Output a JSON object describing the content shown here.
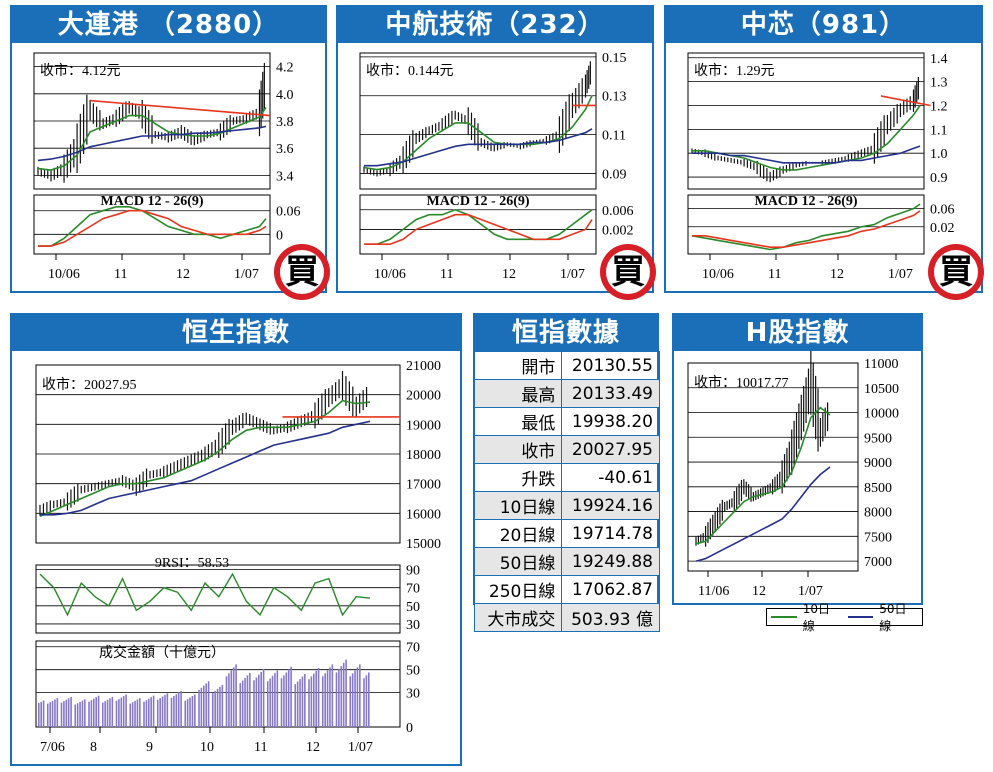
{
  "colors": {
    "blue_header": "#1a6fb8",
    "ma_short": "#2a8a2a",
    "ma_long": "#23318c",
    "trend": "#e8341c",
    "stamp": "#d61f26",
    "volume": "#8878c8"
  },
  "stamp_text": "買",
  "charts": [
    {
      "id": "dalian",
      "title": "大連港 （2880）",
      "close_label": "收市：4.12元",
      "main_ticks": [
        "4.2",
        "4.0",
        "3.8",
        "3.6",
        "3.4"
      ],
      "main_range": [
        3.3,
        4.3
      ],
      "macd_label": "MACD 12 - 26(9)",
      "macd_ticks": [
        "0.06",
        "0"
      ],
      "macd_range": [
        -0.05,
        0.1
      ],
      "date_labels": [
        "10/06",
        "11",
        "12",
        "1/07"
      ],
      "chart_data": {
        "type": "line",
        "x": [
          0,
          4,
          8,
          12,
          16,
          20,
          24,
          28,
          32,
          36,
          40,
          44,
          48,
          52,
          56,
          60,
          64,
          68,
          70
        ],
        "series": [
          {
            "values": [
              3.43,
              3.4,
              3.45,
              3.6,
              3.88,
              3.78,
              3.82,
              3.9,
              3.85,
              3.7,
              3.68,
              3.72,
              3.66,
              3.7,
              3.72,
              3.8,
              3.82,
              3.86,
              4.12
            ]
          },
          {
            "values": [
              3.45,
              3.44,
              3.47,
              3.55,
              3.72,
              3.76,
              3.8,
              3.84,
              3.84,
              3.78,
              3.72,
              3.7,
              3.69,
              3.69,
              3.71,
              3.75,
              3.79,
              3.83,
              3.9
            ]
          },
          {
            "values": [
              3.51,
              3.52,
              3.54,
              3.57,
              3.61,
              3.63,
              3.65,
              3.67,
              3.69,
              3.69,
              3.7,
              3.7,
              3.71,
              3.71,
              3.72,
              3.73,
              3.74,
              3.75,
              3.76
            ]
          }
        ],
        "trendline": [
          [
            16,
            3.95
          ],
          [
            70,
            3.84
          ]
        ],
        "macd": [
          -0.03,
          -0.03,
          -0.01,
          0.02,
          0.05,
          0.06,
          0.07,
          0.07,
          0.06,
          0.04,
          0.02,
          0.01,
          0.0,
          0.0,
          -0.01,
          0.0,
          0.01,
          0.02,
          0.04
        ],
        "signal": [
          -0.03,
          -0.03,
          -0.02,
          0.0,
          0.02,
          0.04,
          0.05,
          0.06,
          0.06,
          0.05,
          0.04,
          0.02,
          0.01,
          0.0,
          0.0,
          0.0,
          0.0,
          0.01,
          0.02
        ]
      }
    },
    {
      "id": "cntech",
      "title": "中航技術（232）",
      "close_label": "收市：0.144元",
      "main_ticks": [
        "0.15",
        "0.13",
        "0.11",
        "0.09"
      ],
      "main_range": [
        0.082,
        0.152
      ],
      "macd_label": "MACD 12 - 26(9)",
      "macd_ticks": [
        "0.006",
        "0.002"
      ],
      "macd_range": [
        -0.003,
        0.009
      ],
      "date_labels": [
        "10/06",
        "11",
        "12",
        "1/07"
      ],
      "chart_data": {
        "type": "line",
        "x": [
          0,
          4,
          8,
          12,
          16,
          20,
          24,
          28,
          32,
          36,
          40,
          44,
          48,
          52,
          56,
          60,
          64,
          68,
          70
        ],
        "series": [
          {
            "values": [
              0.092,
              0.09,
              0.092,
              0.097,
              0.108,
              0.112,
              0.115,
              0.12,
              0.117,
              0.106,
              0.103,
              0.105,
              0.104,
              0.106,
              0.107,
              0.11,
              0.125,
              0.135,
              0.144
            ]
          },
          {
            "values": [
              0.093,
              0.092,
              0.093,
              0.096,
              0.102,
              0.108,
              0.112,
              0.116,
              0.116,
              0.111,
              0.106,
              0.105,
              0.105,
              0.105,
              0.106,
              0.108,
              0.114,
              0.123,
              0.13
            ]
          },
          {
            "values": [
              0.094,
              0.094,
              0.095,
              0.096,
              0.098,
              0.1,
              0.102,
              0.104,
              0.105,
              0.105,
              0.105,
              0.105,
              0.105,
              0.106,
              0.106,
              0.107,
              0.109,
              0.111,
              0.113
            ]
          }
        ],
        "trendline": [
          [
            64,
            0.125
          ],
          [
            70,
            0.125
          ]
        ],
        "macd": [
          -0.001,
          -0.001,
          0.0,
          0.002,
          0.004,
          0.005,
          0.005,
          0.006,
          0.005,
          0.003,
          0.001,
          0.0,
          0.0,
          0.0,
          0.0,
          0.001,
          0.003,
          0.005,
          0.006
        ],
        "signal": [
          -0.001,
          -0.001,
          -0.001,
          0.0,
          0.002,
          0.003,
          0.004,
          0.005,
          0.005,
          0.004,
          0.003,
          0.002,
          0.001,
          0.0,
          0.0,
          0.0,
          0.001,
          0.002,
          0.004
        ]
      }
    },
    {
      "id": "smic",
      "title": "中芯（981）",
      "close_label": "收市：1.29元",
      "main_ticks": [
        "1.4",
        "1.3",
        "1.2",
        "1.1",
        "1.0",
        "0.9"
      ],
      "main_range": [
        0.85,
        1.42
      ],
      "macd_label": "MACD 12 - 26(9)",
      "macd_ticks": [
        "0.06",
        "0.02"
      ],
      "macd_range": [
        -0.04,
        0.09
      ],
      "date_labels": [
        "10/06",
        "11",
        "12",
        "1/07"
      ],
      "chart_data": {
        "type": "line",
        "x": [
          0,
          4,
          8,
          12,
          16,
          20,
          24,
          28,
          32,
          36,
          40,
          44,
          48,
          52,
          56,
          60,
          64,
          68,
          70
        ],
        "series": [
          {
            "values": [
              1.01,
              1.0,
              0.98,
              0.97,
              0.96,
              0.94,
              0.9,
              0.93,
              0.95,
              0.96,
              0.96,
              0.97,
              0.98,
              1.0,
              1.02,
              1.12,
              1.18,
              1.22,
              1.29
            ]
          },
          {
            "values": [
              1.01,
              1.01,
              1.0,
              0.99,
              0.98,
              0.96,
              0.94,
              0.93,
              0.93,
              0.94,
              0.95,
              0.96,
              0.97,
              0.98,
              1.0,
              1.04,
              1.1,
              1.16,
              1.2
            ]
          },
          {
            "values": [
              1.0,
              1.0,
              1.0,
              0.99,
              0.99,
              0.98,
              0.97,
              0.96,
              0.96,
              0.96,
              0.96,
              0.96,
              0.97,
              0.97,
              0.98,
              0.99,
              1.0,
              1.02,
              1.03
            ]
          }
        ],
        "trendline": [
          [
            58,
            1.24
          ],
          [
            72,
            1.2
          ]
        ],
        "macd": [
          0.0,
          -0.005,
          -0.01,
          -0.015,
          -0.02,
          -0.025,
          -0.03,
          -0.025,
          -0.015,
          -0.01,
          0.0,
          0.005,
          0.01,
          0.02,
          0.025,
          0.04,
          0.05,
          0.06,
          0.07
        ],
        "signal": [
          0.0,
          0.0,
          -0.005,
          -0.01,
          -0.015,
          -0.02,
          -0.025,
          -0.025,
          -0.02,
          -0.015,
          -0.01,
          -0.005,
          0.0,
          0.01,
          0.015,
          0.025,
          0.035,
          0.045,
          0.055
        ]
      }
    },
    {
      "id": "hsi",
      "title": "恒生指數",
      "close_label": "收市：20027.95",
      "main_ticks": [
        "21000",
        "20000",
        "19000",
        "18000",
        "17000",
        "16000",
        "15000"
      ],
      "main_range": [
        15000,
        21000
      ],
      "rsi_label": "9RSI：58.53",
      "rsi_ticks": [
        "90",
        "70",
        "50",
        "30"
      ],
      "rsi_range": [
        20,
        95
      ],
      "vol_label": "成交金額（十億元）",
      "vol_ticks": [
        "70",
        "50",
        "30",
        "0"
      ],
      "vol_range": [
        0,
        75
      ],
      "date_labels": [
        "7/06",
        "8",
        "9",
        "10",
        "11",
        "12",
        "1/07"
      ],
      "chart_data": {
        "type": "line",
        "x": [
          0,
          6,
          12,
          18,
          24,
          30,
          36,
          42,
          48,
          54,
          60,
          66,
          72,
          78,
          84,
          90,
          96,
          102,
          108,
          114,
          120,
          126,
          132,
          138,
          144
        ],
        "series": [
          {
            "values": [
              16100,
              16300,
              16400,
              16800,
              16900,
              17000,
              17100,
              16900,
              17300,
              17400,
              17600,
              17800,
              18000,
              18300,
              18900,
              19200,
              19000,
              18800,
              18900,
              19100,
              19300,
              19900,
              20300,
              19600,
              20028
            ]
          },
          {
            "values": [
              15900,
              16100,
              16300,
              16500,
              16700,
              16900,
              17000,
              17000,
              17100,
              17200,
              17400,
              17600,
              17800,
              18100,
              18500,
              18800,
              18900,
              18900,
              18900,
              19000,
              19100,
              19400,
              19800,
              19700,
              19750
            ]
          },
          {
            "values": [
              15950,
              15950,
              16000,
              16100,
              16300,
              16500,
              16600,
              16700,
              16800,
              16900,
              17000,
              17100,
              17300,
              17500,
              17700,
              17900,
              18100,
              18300,
              18400,
              18500,
              18600,
              18700,
              18900,
              19000,
              19100
            ]
          }
        ],
        "trendline": [
          [
            84,
            19250
          ],
          [
            144,
            19250
          ]
        ],
        "rsi": [
          85,
          70,
          40,
          75,
          60,
          50,
          80,
          45,
          55,
          70,
          65,
          45,
          75,
          60,
          85,
          55,
          40,
          70,
          60,
          45,
          75,
          80,
          40,
          60,
          58.53
        ],
        "volume": [
          22,
          24,
          25,
          23,
          26,
          25,
          27,
          24,
          26,
          28,
          30,
          27,
          38,
          35,
          52,
          45,
          48,
          47,
          50,
          44,
          49,
          52,
          56,
          52,
          50
        ]
      }
    },
    {
      "id": "hshare",
      "title": "H股指數",
      "close_label": "收市：10017.77",
      "main_ticks": [
        "11000",
        "10500",
        "10000",
        "9500",
        "9000",
        "8500",
        "8000",
        "7500",
        "7000"
      ],
      "main_range": [
        6800,
        11000
      ],
      "date_labels": [
        "11/06",
        "12",
        "1/07"
      ],
      "legend": [
        "10日線",
        "50日線"
      ],
      "chart_data": {
        "type": "line",
        "x": [
          0,
          4,
          8,
          12,
          16,
          20,
          24,
          28,
          32,
          36,
          40,
          44,
          48,
          52,
          56
        ],
        "series": [
          {
            "values": [
              7400,
              7500,
              7800,
              8100,
              8200,
              8500,
              8300,
              8400,
              8500,
              8700,
              9200,
              9900,
              10600,
              9600,
              10018
            ]
          },
          {
            "values": [
              7350,
              7400,
              7600,
              7800,
              8000,
              8200,
              8300,
              8350,
              8400,
              8500,
              8800,
              9300,
              9900,
              10100,
              9950
            ]
          },
          {
            "values": [
              7000,
              7050,
              7150,
              7250,
              7350,
              7450,
              7550,
              7650,
              7750,
              7850,
              8050,
              8300,
              8550,
              8750,
              8900
            ]
          }
        ]
      }
    }
  ],
  "hsi_table": {
    "title": "恒指數據",
    "rows": [
      {
        "k": "開市",
        "v": "20130.55"
      },
      {
        "k": "最高",
        "v": "20133.49"
      },
      {
        "k": "最低",
        "v": "19938.20"
      },
      {
        "k": "收市",
        "v": "20027.95"
      },
      {
        "k": "升跌",
        "v": "-40.61"
      },
      {
        "k": "10日線",
        "v": "19924.16"
      },
      {
        "k": "20日線",
        "v": "19714.78"
      },
      {
        "k": "50日線",
        "v": "19249.88"
      },
      {
        "k": "250日線",
        "v": "17062.87"
      },
      {
        "k": "大市成交",
        "v": "503.93 億"
      }
    ]
  }
}
